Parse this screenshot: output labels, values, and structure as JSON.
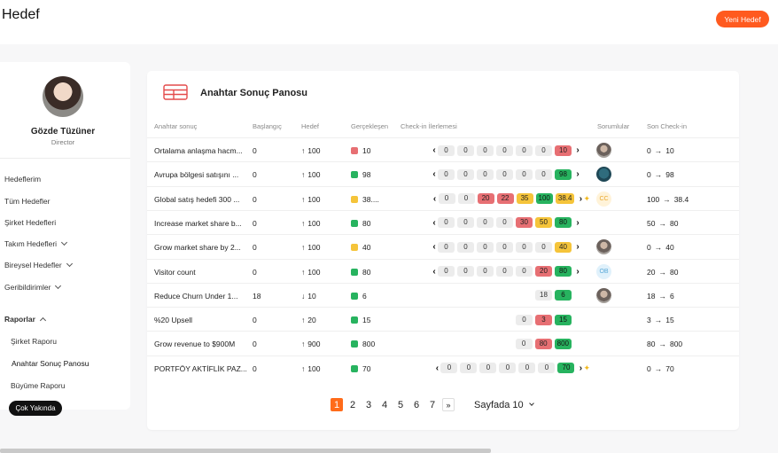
{
  "header": {
    "title": "Hedef",
    "new_button": "Yeni Hedef"
  },
  "user": {
    "name": "Gözde Tüzüner",
    "role": "Director"
  },
  "nav": {
    "hedeflerim": "Hedeflerim",
    "tum": "Tüm Hedefler",
    "sirket": "Şirket Hedefleri",
    "takim": "Takım Hedefleri",
    "bireysel": "Bireysel Hedefler",
    "geri": "Geribildirimler",
    "raporlar": "Raporlar",
    "sub_sirket": "Şirket Raporu",
    "sub_anahtar": "Anahtar Sonuç Panosu",
    "sub_buyume": "Büyüme Raporu",
    "tooltip": "Çok Yakında"
  },
  "panel": {
    "title": "Anahtar Sonuç Panosu"
  },
  "columns": [
    "Anahtar sonuç",
    "Başlangıç",
    "Hedef",
    "Gerçekleşen",
    "Check-in İlerlemesi",
    "Sorumlular",
    "Son Check-in"
  ],
  "rows": [
    {
      "name": "Ortalama anlaşma hacm...",
      "start": "0",
      "target": "100",
      "dir": "up",
      "real": "10",
      "real_color": "#e76f73",
      "nav": true,
      "pills": [
        [
          "0",
          "g"
        ],
        [
          "0",
          "g"
        ],
        [
          "0",
          "g"
        ],
        [
          "0",
          "g"
        ],
        [
          "0",
          "g"
        ],
        [
          "0",
          "g"
        ],
        [
          "10",
          "r"
        ]
      ],
      "spark": false,
      "owner": "photo",
      "last_from": "0",
      "last_to": "10"
    },
    {
      "name": "Avrupa bölgesi satışını ...",
      "start": "0",
      "target": "100",
      "dir": "up",
      "real": "98",
      "real_color": "#27b35f",
      "nav": true,
      "pills": [
        [
          "0",
          "g"
        ],
        [
          "0",
          "g"
        ],
        [
          "0",
          "g"
        ],
        [
          "0",
          "g"
        ],
        [
          "0",
          "g"
        ],
        [
          "0",
          "g"
        ],
        [
          "98",
          "gr"
        ]
      ],
      "spark": false,
      "owner": "dark",
      "last_from": "0",
      "last_to": "98"
    },
    {
      "name": "Global satış hedefi 300 ...",
      "start": "0",
      "target": "100",
      "dir": "up",
      "real": "38....",
      "real_color": "#f5c43a",
      "nav": true,
      "pills": [
        [
          "0",
          "g"
        ],
        [
          "0",
          "g"
        ],
        [
          "20",
          "r"
        ],
        [
          "22",
          "r"
        ],
        [
          "35",
          "y"
        ],
        [
          "100",
          "gr"
        ],
        [
          "38.4",
          "y"
        ]
      ],
      "spark": true,
      "owner": "CC",
      "last_from": "100",
      "last_to": "38.4"
    },
    {
      "name": "Increase market share b...",
      "start": "0",
      "target": "100",
      "dir": "up",
      "real": "80",
      "real_color": "#27b35f",
      "nav": true,
      "pills": [
        [
          "0",
          "g"
        ],
        [
          "0",
          "g"
        ],
        [
          "0",
          "g"
        ],
        [
          "0",
          "g"
        ],
        [
          "30",
          "r"
        ],
        [
          "50",
          "y"
        ],
        [
          "80",
          "gr"
        ]
      ],
      "spark": false,
      "owner": "",
      "last_from": "50",
      "last_to": "80"
    },
    {
      "name": "Grow market share by 2...",
      "start": "0",
      "target": "100",
      "dir": "up",
      "real": "40",
      "real_color": "#f5c43a",
      "nav": true,
      "pills": [
        [
          "0",
          "g"
        ],
        [
          "0",
          "g"
        ],
        [
          "0",
          "g"
        ],
        [
          "0",
          "g"
        ],
        [
          "0",
          "g"
        ],
        [
          "0",
          "g"
        ],
        [
          "40",
          "y"
        ]
      ],
      "spark": false,
      "owner": "photo",
      "last_from": "0",
      "last_to": "40"
    },
    {
      "name": "Visitor count",
      "start": "0",
      "target": "100",
      "dir": "up",
      "real": "80",
      "real_color": "#27b35f",
      "nav": true,
      "pills": [
        [
          "0",
          "g"
        ],
        [
          "0",
          "g"
        ],
        [
          "0",
          "g"
        ],
        [
          "0",
          "g"
        ],
        [
          "0",
          "g"
        ],
        [
          "20",
          "r"
        ],
        [
          "80",
          "gr"
        ]
      ],
      "spark": false,
      "owner": "OB",
      "last_from": "20",
      "last_to": "80"
    },
    {
      "name": "Reduce Churn Under 1...",
      "start": "18",
      "target": "10",
      "dir": "down",
      "real": "6",
      "real_color": "#27b35f",
      "nav": false,
      "pills": [
        [
          "18",
          "g"
        ],
        [
          "6",
          "gr"
        ]
      ],
      "spark": false,
      "owner": "photo",
      "last_from": "18",
      "last_to": "6"
    },
    {
      "name": "%20 Upsell",
      "start": "0",
      "target": "20",
      "dir": "up",
      "real": "15",
      "real_color": "#27b35f",
      "nav": false,
      "pills": [
        [
          "0",
          "g"
        ],
        [
          "3",
          "r"
        ],
        [
          "15",
          "gr"
        ]
      ],
      "spark": false,
      "owner": "",
      "last_from": "3",
      "last_to": "15"
    },
    {
      "name": "Grow revenue to $900M",
      "start": "0",
      "target": "900",
      "dir": "up",
      "real": "800",
      "real_color": "#27b35f",
      "nav": false,
      "pills": [
        [
          "0",
          "g"
        ],
        [
          "80",
          "r"
        ],
        [
          "800",
          "gr"
        ]
      ],
      "spark": false,
      "owner": "",
      "last_from": "80",
      "last_to": "800"
    },
    {
      "name": "PORTFÖY AKTİFLİK PAZ...",
      "start": "0",
      "target": "100",
      "dir": "up",
      "real": "70",
      "real_color": "#27b35f",
      "nav": true,
      "pills": [
        [
          "0",
          "g"
        ],
        [
          "0",
          "g"
        ],
        [
          "0",
          "g"
        ],
        [
          "0",
          "g"
        ],
        [
          "0",
          "g"
        ],
        [
          "0",
          "g"
        ],
        [
          "70",
          "gr"
        ]
      ],
      "spark": true,
      "owner": "",
      "last_from": "0",
      "last_to": "70"
    }
  ],
  "pagination": {
    "pages": [
      "1",
      "2",
      "3",
      "4",
      "5",
      "6",
      "7"
    ],
    "current": "1",
    "next": "»",
    "per_page": "Sayfada 10"
  }
}
